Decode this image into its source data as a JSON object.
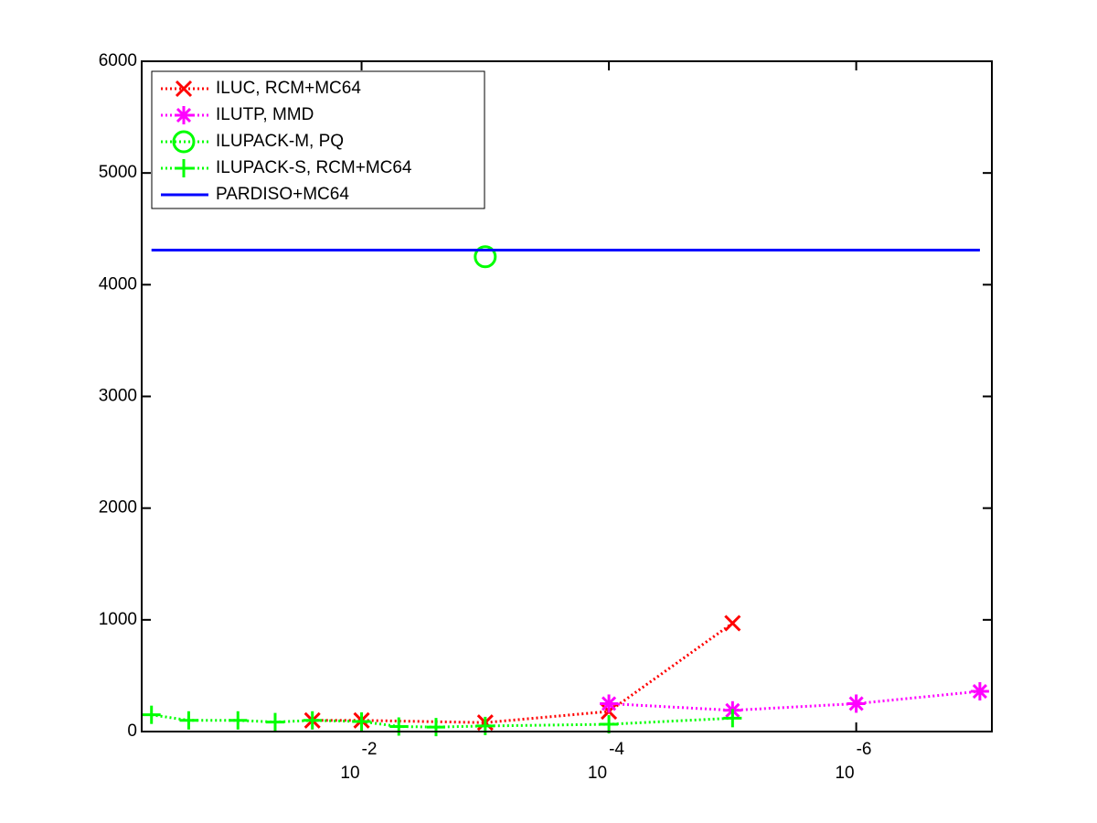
{
  "chart_data": {
    "type": "line",
    "x_scale": "log",
    "xlim": [
      0.6,
      8e-08
    ],
    "xticks": [
      {
        "value": 0.01,
        "label": "10",
        "exponent": "-2"
      },
      {
        "value": 0.0001,
        "label": "10",
        "exponent": "-4"
      },
      {
        "value": 1e-06,
        "label": "10",
        "exponent": "-6"
      }
    ],
    "ylim": [
      0,
      6000
    ],
    "yticks": [
      0,
      1000,
      2000,
      3000,
      4000,
      5000,
      6000
    ],
    "legend": "upper left",
    "series": [
      {
        "name": "ILUC, RCM+MC64",
        "color": "#ff0000",
        "marker": "x",
        "linestyle": "dotted",
        "x": [
          0.025,
          0.01,
          0.001,
          0.0001,
          1e-05
        ],
        "values": [
          100,
          100,
          80,
          180,
          970
        ]
      },
      {
        "name": "ILUTP, MMD",
        "color": "#ff00ff",
        "marker": "star",
        "linestyle": "dotted",
        "x": [
          0.0001,
          1e-05,
          1e-06,
          1e-07
        ],
        "values": [
          250,
          190,
          250,
          360
        ]
      },
      {
        "name": "ILUPACK-M, PQ",
        "color": "#00ff00",
        "marker": "circle",
        "linestyle": "dotted",
        "x": [
          0.001
        ],
        "values": [
          4250
        ]
      },
      {
        "name": "ILUPACK-S, RCM+MC64",
        "color": "#00ff00",
        "marker": "plus",
        "linestyle": "dotted",
        "x": [
          0.5,
          0.25,
          0.1,
          0.05,
          0.025,
          0.01,
          0.005,
          0.0025,
          0.001,
          0.0001,
          1e-05
        ],
        "values": [
          150,
          100,
          100,
          85,
          100,
          90,
          45,
          40,
          50,
          65,
          120
        ]
      },
      {
        "name": "PARDISO+MC64",
        "color": "#0000ff",
        "marker": "none",
        "linestyle": "solid",
        "x": [
          0.5,
          1e-07
        ],
        "values": [
          4310,
          4310
        ]
      }
    ]
  }
}
